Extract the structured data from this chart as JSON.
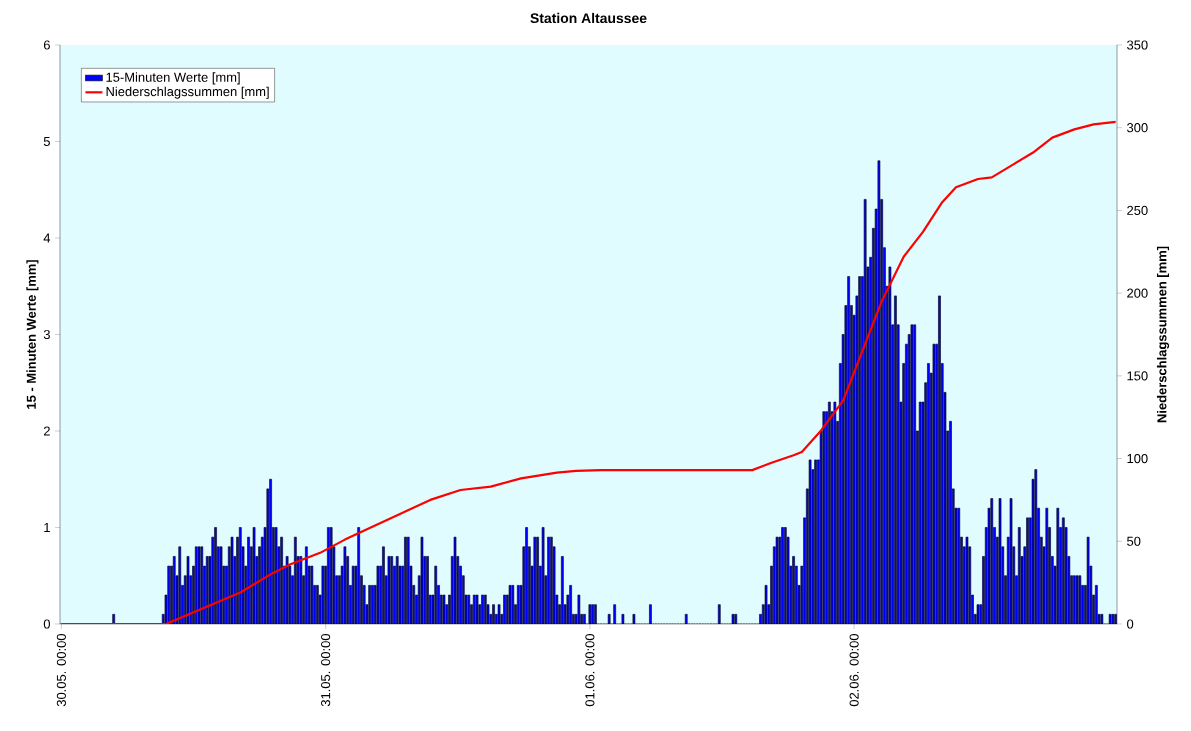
{
  "chart_data": {
    "type": "bar",
    "title": "Station Altaussee",
    "ylabel": "15 - Minuten Werte [mm]",
    "y2label": "Niederschlagssummen [mm]",
    "legend": "top left",
    "grid": false,
    "ylim": [
      0,
      6
    ],
    "yticks": [
      0,
      1,
      2,
      3,
      4,
      5,
      6
    ],
    "y2lim": [
      0,
      350
    ],
    "y2ticks": [
      0,
      50,
      100,
      150,
      200,
      250,
      300,
      350
    ],
    "categories": [
      "30.05. 00:00",
      null,
      null,
      null,
      null,
      null,
      null,
      null,
      null,
      null,
      null,
      null,
      null,
      null,
      null,
      null,
      null,
      null,
      null,
      null,
      null,
      null,
      null,
      null,
      null,
      null,
      null,
      null,
      null,
      null,
      null,
      null,
      null,
      null,
      null,
      null,
      null,
      null,
      null,
      null,
      null,
      null,
      null,
      null,
      null,
      null,
      null,
      null,
      null,
      null,
      null,
      null,
      null,
      null,
      null,
      null,
      null,
      null,
      null,
      null,
      null,
      null,
      null,
      null,
      null,
      null,
      null,
      null,
      null,
      null,
      null,
      null,
      null,
      null,
      null,
      null,
      null,
      null,
      null,
      null,
      null,
      null,
      null,
      null,
      null,
      null,
      null,
      null,
      null,
      null,
      null,
      null,
      null,
      null,
      null,
      null,
      "31.05. 00:00",
      null,
      null,
      null,
      null,
      null,
      null,
      null,
      null,
      null,
      null,
      null,
      null,
      null,
      null,
      null,
      null,
      null,
      null,
      null,
      null,
      null,
      null,
      null,
      null,
      null,
      null,
      null,
      null,
      null,
      null,
      null,
      null,
      null,
      null,
      null,
      null,
      null,
      null,
      null,
      null,
      null,
      null,
      null,
      null,
      null,
      null,
      null,
      null,
      null,
      null,
      null,
      null,
      null,
      null,
      null,
      null,
      null,
      null,
      null,
      null,
      null,
      null,
      null,
      null,
      null,
      null,
      null,
      null,
      null,
      null,
      null,
      null,
      null,
      null,
      null,
      null,
      null,
      null,
      null,
      null,
      null,
      null,
      null,
      null,
      null,
      null,
      null,
      null,
      null,
      null,
      null,
      null,
      null,
      null,
      null,
      "01.06. 00:00",
      null,
      null,
      null,
      null,
      null,
      null,
      null,
      null,
      null,
      null,
      null,
      null,
      null,
      null,
      null,
      null,
      null,
      null,
      null,
      null,
      null,
      null,
      null,
      null,
      null,
      null,
      null,
      null,
      null,
      null,
      null,
      null,
      null,
      null,
      null,
      null,
      null,
      null,
      null,
      null,
      null,
      null,
      null,
      null,
      null,
      null,
      null,
      null,
      null,
      null,
      null,
      null,
      null,
      null,
      null,
      null,
      null,
      null,
      null,
      null,
      null,
      null,
      null,
      null,
      null,
      null,
      null,
      null,
      null,
      null,
      null,
      null,
      null,
      null,
      null,
      null,
      null,
      null,
      null,
      null,
      null,
      null,
      null,
      null,
      null,
      null,
      null,
      null,
      null,
      null,
      null,
      null,
      null,
      null,
      null,
      "02.06. 00:00",
      null,
      null,
      null,
      null,
      null,
      null,
      null,
      null,
      null,
      null,
      null,
      null,
      null,
      null,
      null,
      null,
      null,
      null,
      null,
      null,
      null,
      null,
      null,
      null,
      null,
      null,
      null,
      null,
      null,
      null,
      null,
      null,
      null,
      null,
      null,
      null,
      null,
      null,
      null,
      null,
      null,
      null,
      null,
      null,
      null,
      null,
      null,
      null,
      null,
      null,
      null,
      null,
      null,
      null,
      null,
      null,
      null,
      null,
      null,
      null,
      null,
      null,
      null,
      null,
      null,
      null,
      null,
      null,
      null,
      null,
      null,
      null,
      null,
      null,
      null,
      null,
      null,
      null,
      null,
      null,
      null,
      null,
      null,
      null,
      null,
      null,
      null,
      null,
      null,
      null,
      null,
      null,
      null,
      null,
      null
    ],
    "series": [
      {
        "name": "15-Minuten Werte [mm]",
        "color": "#0000ff",
        "values": [
          0,
          0,
          0,
          0,
          0,
          0,
          0,
          0,
          0,
          0,
          0,
          0,
          0,
          0,
          0,
          0,
          0,
          0,
          0,
          0.1,
          0,
          0,
          0,
          0,
          0,
          0,
          0,
          0,
          0,
          0,
          0,
          0,
          0,
          0,
          0,
          0,
          0,
          0.1,
          0.3,
          0.6,
          0.6,
          0.7,
          0.5,
          0.8,
          0.4,
          0.5,
          0.7,
          0.5,
          0.6,
          0.8,
          0.8,
          0.8,
          0.6,
          0.7,
          0.7,
          0.9,
          1.0,
          0.8,
          0.8,
          0.6,
          0.6,
          0.8,
          0.9,
          0.7,
          0.9,
          1.0,
          0.8,
          0.6,
          0.9,
          0.8,
          1.0,
          0.7,
          0.8,
          0.9,
          1.0,
          1.4,
          1.5,
          1.0,
          1.0,
          0.8,
          0.9,
          0.6,
          0.7,
          0.6,
          0.5,
          0.9,
          0.7,
          0.7,
          0.5,
          0.8,
          0.6,
          0.6,
          0.4,
          0.4,
          0.3,
          0.6,
          0.6,
          1.0,
          1.0,
          0.8,
          0.5,
          0.5,
          0.6,
          0.8,
          0.7,
          0.4,
          0.6,
          0.6,
          1.0,
          0.5,
          0.4,
          0.2,
          0.4,
          0.4,
          0.4,
          0.6,
          0.6,
          0.8,
          0.5,
          0.7,
          0.7,
          0.6,
          0.7,
          0.6,
          0.6,
          0.9,
          0.9,
          0.6,
          0.4,
          0.3,
          0.5,
          0.9,
          0.7,
          0.7,
          0.3,
          0.3,
          0.6,
          0.4,
          0.3,
          0.3,
          0.2,
          0.3,
          0.7,
          0.9,
          0.7,
          0.6,
          0.5,
          0.3,
          0.3,
          0.2,
          0.3,
          0.3,
          0.2,
          0.3,
          0.3,
          0.2,
          0.1,
          0.2,
          0.1,
          0.2,
          0.1,
          0.3,
          0.3,
          0.4,
          0.4,
          0.2,
          0.4,
          0.4,
          0.8,
          1.0,
          0.8,
          0.6,
          0.9,
          0.9,
          0.6,
          1.0,
          0.5,
          0.9,
          0.9,
          0.8,
          0.3,
          0.2,
          0.7,
          0.2,
          0.3,
          0.4,
          0.1,
          0.1,
          0.3,
          0.1,
          0.1,
          0,
          0.2,
          0.2,
          0.2,
          0,
          0,
          0,
          0,
          0.1,
          0,
          0.2,
          0,
          0,
          0.1,
          0,
          0,
          0,
          0.1,
          0,
          0,
          0,
          0,
          0,
          0.2,
          0,
          0,
          0,
          0,
          0,
          0,
          0,
          0,
          0,
          0,
          0,
          0,
          0.1,
          0,
          0,
          0,
          0,
          0,
          0,
          0,
          0,
          0,
          0,
          0,
          0.2,
          0,
          0,
          0,
          0,
          0.1,
          0.1,
          0,
          0,
          0,
          0,
          0,
          0,
          0,
          0,
          0.1,
          0.2,
          0.4,
          0.2,
          0.6,
          0.8,
          0.9,
          0.9,
          1.0,
          1.0,
          0.9,
          0.6,
          0.7,
          0.6,
          0.4,
          0.6,
          1.1,
          1.4,
          1.7,
          1.6,
          1.7,
          1.7,
          2.0,
          2.2,
          2.2,
          2.3,
          2.2,
          2.3,
          2.1,
          2.7,
          3.0,
          3.3,
          3.6,
          3.3,
          3.2,
          3.4,
          3.6,
          3.6,
          4.4,
          3.7,
          3.8,
          4.1,
          4.3,
          4.8,
          4.4,
          3.9,
          3.5,
          3.7,
          3.1,
          3.4,
          3.1,
          2.3,
          2.7,
          2.9,
          3.0,
          3.1,
          3.1,
          2.0,
          2.3,
          2.3,
          2.5,
          2.7,
          2.6,
          2.9,
          2.9,
          3.4,
          2.7,
          2.4,
          2.0,
          2.1,
          1.4,
          1.2,
          1.2,
          0.9,
          0.8,
          0.9,
          0.8,
          0.3,
          0.1,
          0.2,
          0.2,
          0.7,
          1.0,
          1.2,
          1.3,
          1.0,
          0.9,
          1.3,
          0.8,
          0.5,
          0.9,
          1.3,
          0.8,
          0.5,
          1.0,
          0.7,
          0.8,
          1.1,
          1.1,
          1.5,
          1.6,
          1.2,
          0.9,
          0.8,
          1.2,
          1.0,
          0.7,
          0.6,
          1.2,
          1.0,
          1.1,
          1.0,
          0.7,
          0.5,
          0.5,
          0.5,
          0.5,
          0.4,
          0.4,
          0.9,
          0.6,
          0.3,
          0.4,
          0.1,
          0.1,
          0,
          0,
          0.1,
          0.1,
          0.1
        ]
      },
      {
        "name": "Niederschlagssummen [mm]",
        "type": "line",
        "axis": "y2",
        "color": "#ff0000",
        "marker": "none",
        "line_style": "solid",
        "values": [
          0,
          null,
          null,
          null,
          null,
          null,
          null,
          null,
          null,
          null,
          null,
          null,
          null,
          null,
          null,
          null,
          null,
          null,
          null,
          null,
          null,
          null,
          null,
          null,
          null,
          null,
          null,
          null,
          null,
          null,
          null,
          null,
          null,
          null,
          null,
          null,
          null,
          null,
          0,
          null,
          null,
          null,
          null,
          null,
          null,
          null,
          null,
          null,
          null,
          null,
          8.5,
          null,
          null,
          null,
          null,
          null,
          null,
          null,
          null,
          null,
          null,
          null,
          null,
          null,
          null,
          19,
          null,
          null,
          null,
          null,
          null,
          null,
          null,
          null,
          null,
          null,
          30,
          null,
          null,
          null,
          null,
          null,
          null,
          36,
          null,
          null,
          null,
          null,
          null,
          null,
          null,
          null,
          null,
          null,
          43,
          null,
          null,
          null,
          null,
          null,
          null,
          null,
          null,
          51,
          null,
          null,
          null,
          null,
          null,
          null,
          null,
          null,
          58,
          null,
          null,
          null,
          null,
          null,
          null,
          null,
          null,
          null,
          null,
          66.5,
          null,
          null,
          null,
          null,
          null,
          null,
          null,
          null,
          null,
          null,
          75,
          null,
          null,
          null,
          null,
          null,
          null,
          null,
          null,
          null,
          null,
          81,
          null,
          null,
          null,
          null,
          null,
          null,
          null,
          null,
          null,
          null,
          83,
          null,
          null,
          null,
          null,
          null,
          null,
          null,
          null,
          null,
          null,
          88,
          null,
          null,
          null,
          null,
          null,
          null,
          null,
          null,
          null,
          null,
          null,
          null,
          91.5,
          null,
          null,
          null,
          null,
          null,
          null,
          92.5,
          null,
          null,
          null,
          null,
          null,
          null,
          null,
          null,
          93,
          null,
          null,
          null,
          null,
          null,
          null,
          null,
          null,
          null,
          null,
          null,
          null,
          null,
          null,
          null,
          null,
          null,
          null,
          null,
          null,
          null,
          null,
          null,
          null,
          null,
          null,
          null,
          null,
          null,
          null,
          null,
          null,
          null,
          null,
          null,
          null,
          null,
          null,
          null,
          null,
          null,
          null,
          null,
          null,
          null,
          null,
          null,
          null,
          null,
          null,
          null,
          null,
          null,
          null,
          93,
          null,
          null,
          null,
          null,
          null,
          null,
          97.5,
          null,
          null,
          null,
          null,
          null,
          null,
          null,
          102,
          null,
          null,
          104,
          null,
          null,
          null,
          null,
          null,
          null,
          117,
          null,
          null,
          null,
          null,
          null,
          null,
          null,
          135,
          null,
          null,
          null,
          null,
          null,
          null,
          165,
          null,
          null,
          null,
          null,
          null,
          null,
          195,
          null,
          null,
          null,
          null,
          null,
          null,
          null,
          222,
          null,
          null,
          null,
          null,
          null,
          null,
          237,
          null,
          null,
          null,
          null,
          null,
          null,
          255,
          null,
          null,
          null,
          null,
          264,
          null,
          null,
          null,
          null,
          null,
          null,
          null,
          269,
          null,
          null,
          null,
          null,
          270,
          null,
          null,
          null,
          null,
          null,
          null,
          null,
          278,
          null,
          null,
          null,
          null,
          null,
          null,
          285,
          null,
          null,
          null,
          null,
          null,
          null,
          294,
          null,
          null,
          null,
          null,
          null,
          null,
          null,
          299,
          null,
          null,
          null,
          null,
          null,
          null,
          302,
          null,
          null,
          null,
          null,
          null,
          null,
          null,
          303.5
        ]
      }
    ]
  }
}
